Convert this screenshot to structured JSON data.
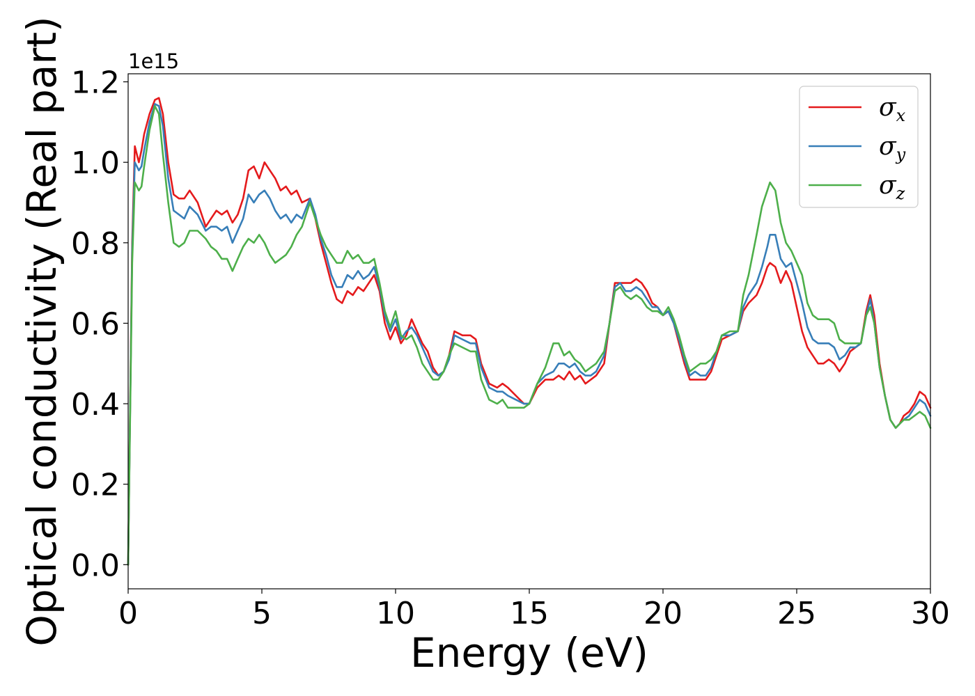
{
  "chart_data": {
    "type": "line",
    "title": "",
    "xlabel": "Energy (eV)",
    "ylabel": "Optical conductivity (Real part)",
    "y_offset_label": "1e15",
    "xlim": [
      0,
      30
    ],
    "ylim": [
      -0.06,
      1.22
    ],
    "x_ticks": [
      0,
      5,
      10,
      15,
      20,
      25,
      30
    ],
    "x_tick_labels": [
      "0",
      "5",
      "10",
      "15",
      "20",
      "25",
      "30"
    ],
    "y_ticks": [
      0.0,
      0.2,
      0.4,
      0.6,
      0.8,
      1.0,
      1.2
    ],
    "y_tick_labels": [
      "0.0",
      "0.2",
      "0.4",
      "0.6",
      "0.8",
      "1.0",
      "1.2"
    ],
    "grid": false,
    "legend_position": "top-right",
    "x": [
      0,
      0.15,
      0.25,
      0.4,
      0.5,
      0.6,
      0.8,
      1.0,
      1.15,
      1.3,
      1.5,
      1.7,
      1.9,
      2.1,
      2.3,
      2.6,
      2.9,
      3.1,
      3.3,
      3.5,
      3.7,
      3.9,
      4.1,
      4.3,
      4.5,
      4.7,
      4.9,
      5.1,
      5.3,
      5.5,
      5.7,
      5.9,
      6.1,
      6.3,
      6.5,
      6.8,
      7.0,
      7.2,
      7.4,
      7.6,
      7.8,
      8.0,
      8.2,
      8.4,
      8.6,
      8.8,
      9.0,
      9.2,
      9.4,
      9.6,
      9.8,
      10.0,
      10.2,
      10.4,
      10.6,
      10.8,
      11.0,
      11.2,
      11.4,
      11.6,
      11.8,
      12.0,
      12.2,
      12.5,
      12.8,
      13.0,
      13.2,
      13.5,
      13.8,
      14.0,
      14.2,
      14.5,
      14.8,
      15.0,
      15.3,
      15.6,
      15.9,
      16.1,
      16.3,
      16.5,
      16.7,
      16.9,
      17.1,
      17.3,
      17.5,
      17.8,
      18.0,
      18.2,
      18.4,
      18.6,
      18.8,
      19.0,
      19.2,
      19.4,
      19.6,
      19.8,
      20.0,
      20.2,
      20.4,
      20.6,
      20.8,
      21.0,
      21.2,
      21.4,
      21.6,
      21.8,
      22.0,
      22.2,
      22.5,
      22.8,
      23.0,
      23.2,
      23.5,
      23.7,
      23.9,
      24.0,
      24.2,
      24.4,
      24.6,
      24.8,
      25.0,
      25.2,
      25.4,
      25.6,
      25.8,
      26.0,
      26.2,
      26.4,
      26.6,
      26.8,
      27.0,
      27.2,
      27.4,
      27.6,
      27.75,
      27.9,
      28.1,
      28.3,
      28.5,
      28.7,
      28.85,
      29.0,
      29.2,
      29.4,
      29.6,
      29.8,
      30.0
    ],
    "series": [
      {
        "name": "σx",
        "subscript": "x",
        "color": "#e41a1c",
        "values": [
          0.0,
          0.8,
          1.04,
          1.0,
          1.03,
          1.07,
          1.12,
          1.155,
          1.16,
          1.12,
          1.0,
          0.92,
          0.91,
          0.91,
          0.93,
          0.9,
          0.84,
          0.86,
          0.88,
          0.87,
          0.88,
          0.85,
          0.87,
          0.91,
          0.98,
          0.99,
          0.96,
          1.0,
          0.98,
          0.96,
          0.93,
          0.94,
          0.92,
          0.93,
          0.9,
          0.91,
          0.86,
          0.8,
          0.75,
          0.7,
          0.66,
          0.65,
          0.68,
          0.67,
          0.69,
          0.68,
          0.7,
          0.72,
          0.68,
          0.6,
          0.56,
          0.59,
          0.55,
          0.57,
          0.61,
          0.58,
          0.55,
          0.53,
          0.49,
          0.47,
          0.48,
          0.52,
          0.58,
          0.57,
          0.57,
          0.56,
          0.5,
          0.45,
          0.44,
          0.45,
          0.44,
          0.42,
          0.4,
          0.4,
          0.44,
          0.46,
          0.46,
          0.47,
          0.46,
          0.48,
          0.46,
          0.47,
          0.45,
          0.46,
          0.47,
          0.5,
          0.6,
          0.7,
          0.7,
          0.7,
          0.7,
          0.71,
          0.7,
          0.68,
          0.65,
          0.64,
          0.62,
          0.63,
          0.6,
          0.55,
          0.5,
          0.46,
          0.46,
          0.46,
          0.46,
          0.48,
          0.52,
          0.56,
          0.57,
          0.58,
          0.63,
          0.65,
          0.67,
          0.7,
          0.74,
          0.75,
          0.74,
          0.7,
          0.73,
          0.7,
          0.64,
          0.58,
          0.54,
          0.52,
          0.5,
          0.5,
          0.51,
          0.5,
          0.48,
          0.5,
          0.53,
          0.54,
          0.55,
          0.63,
          0.67,
          0.62,
          0.5,
          0.42,
          0.36,
          0.34,
          0.35,
          0.37,
          0.38,
          0.4,
          0.43,
          0.42,
          0.39
        ]
      },
      {
        "name": "σy",
        "subscript": "y",
        "color": "#377eb8",
        "values": [
          0.0,
          0.78,
          1.0,
          0.98,
          0.99,
          1.03,
          1.1,
          1.145,
          1.14,
          1.09,
          0.96,
          0.88,
          0.87,
          0.86,
          0.89,
          0.87,
          0.83,
          0.84,
          0.84,
          0.83,
          0.84,
          0.8,
          0.83,
          0.86,
          0.92,
          0.9,
          0.92,
          0.93,
          0.91,
          0.88,
          0.86,
          0.87,
          0.85,
          0.87,
          0.86,
          0.91,
          0.87,
          0.81,
          0.77,
          0.72,
          0.69,
          0.69,
          0.72,
          0.71,
          0.73,
          0.71,
          0.72,
          0.74,
          0.69,
          0.62,
          0.58,
          0.61,
          0.56,
          0.58,
          0.59,
          0.57,
          0.54,
          0.51,
          0.48,
          0.47,
          0.48,
          0.51,
          0.57,
          0.56,
          0.55,
          0.55,
          0.49,
          0.44,
          0.43,
          0.43,
          0.42,
          0.41,
          0.4,
          0.4,
          0.45,
          0.47,
          0.48,
          0.5,
          0.5,
          0.49,
          0.5,
          0.48,
          0.47,
          0.47,
          0.48,
          0.52,
          0.6,
          0.69,
          0.7,
          0.68,
          0.68,
          0.69,
          0.68,
          0.66,
          0.64,
          0.64,
          0.62,
          0.63,
          0.6,
          0.56,
          0.51,
          0.47,
          0.48,
          0.47,
          0.47,
          0.49,
          0.53,
          0.57,
          0.57,
          0.58,
          0.64,
          0.67,
          0.7,
          0.74,
          0.79,
          0.82,
          0.82,
          0.76,
          0.74,
          0.75,
          0.7,
          0.65,
          0.59,
          0.56,
          0.55,
          0.55,
          0.55,
          0.54,
          0.51,
          0.52,
          0.54,
          0.54,
          0.55,
          0.62,
          0.66,
          0.6,
          0.49,
          0.42,
          0.36,
          0.34,
          0.35,
          0.36,
          0.37,
          0.39,
          0.41,
          0.4,
          0.37
        ]
      },
      {
        "name": "σz",
        "subscript": "z",
        "color": "#4daf4a",
        "values": [
          0.0,
          0.75,
          0.95,
          0.93,
          0.94,
          0.99,
          1.08,
          1.14,
          1.12,
          1.02,
          0.9,
          0.8,
          0.79,
          0.8,
          0.83,
          0.83,
          0.81,
          0.79,
          0.78,
          0.76,
          0.76,
          0.73,
          0.76,
          0.79,
          0.81,
          0.8,
          0.82,
          0.8,
          0.77,
          0.75,
          0.76,
          0.77,
          0.79,
          0.82,
          0.84,
          0.9,
          0.86,
          0.82,
          0.79,
          0.77,
          0.75,
          0.75,
          0.78,
          0.76,
          0.77,
          0.75,
          0.75,
          0.76,
          0.7,
          0.63,
          0.59,
          0.63,
          0.57,
          0.56,
          0.57,
          0.54,
          0.5,
          0.48,
          0.46,
          0.46,
          0.48,
          0.52,
          0.55,
          0.54,
          0.53,
          0.53,
          0.46,
          0.41,
          0.4,
          0.41,
          0.39,
          0.39,
          0.39,
          0.4,
          0.45,
          0.49,
          0.55,
          0.55,
          0.52,
          0.53,
          0.51,
          0.5,
          0.48,
          0.49,
          0.5,
          0.53,
          0.6,
          0.68,
          0.69,
          0.67,
          0.66,
          0.67,
          0.66,
          0.64,
          0.63,
          0.63,
          0.62,
          0.64,
          0.61,
          0.57,
          0.52,
          0.48,
          0.49,
          0.5,
          0.5,
          0.51,
          0.53,
          0.57,
          0.58,
          0.58,
          0.67,
          0.72,
          0.82,
          0.89,
          0.93,
          0.95,
          0.93,
          0.85,
          0.8,
          0.78,
          0.75,
          0.72,
          0.65,
          0.62,
          0.61,
          0.61,
          0.61,
          0.6,
          0.56,
          0.55,
          0.55,
          0.55,
          0.55,
          0.62,
          0.64,
          0.6,
          0.49,
          0.42,
          0.36,
          0.34,
          0.35,
          0.36,
          0.36,
          0.37,
          0.38,
          0.37,
          0.34
        ]
      }
    ]
  }
}
